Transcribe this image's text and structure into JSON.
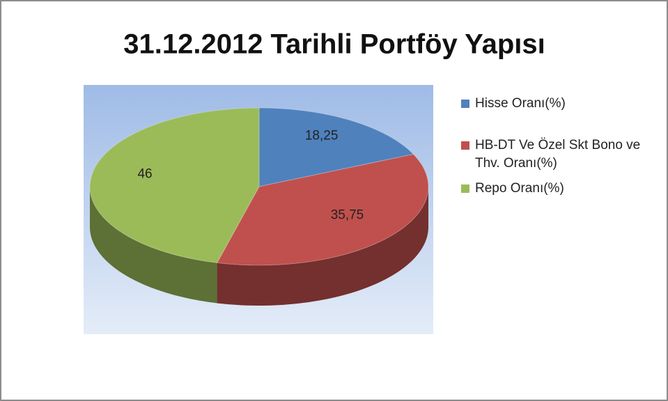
{
  "chart_data": {
    "type": "pie",
    "title": "31.12.2012 Tarihli Portföy Yapısı",
    "categories": [
      "Hisse Oranı(%)",
      "HB-DT Ve Özel Skt Bono ve Thv. Oranı(%)",
      "Repo Oranı(%)"
    ],
    "values": [
      18.25,
      35.75,
      46
    ],
    "value_labels": [
      "18,25",
      "35,75",
      "46"
    ],
    "colors": [
      "#4f81bd",
      "#c0504d",
      "#9bbb59"
    ],
    "legend": "right"
  }
}
